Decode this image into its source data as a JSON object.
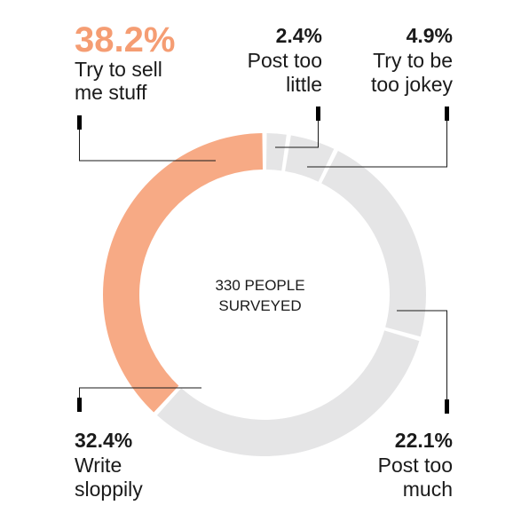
{
  "center_label": [
    "330 PEOPLE",
    "SURVEYED"
  ],
  "colors": {
    "highlight": "#f7aa85",
    "highlight_text": "#f59d73",
    "muted": "#e5e5e6",
    "text": "#1a1a1a"
  },
  "chart_data": {
    "type": "pie",
    "style": "donut",
    "title": "",
    "center_label": "330 PEOPLE SURVEYED",
    "slices": [
      {
        "label": "Post too little",
        "value": 2.4,
        "value_label": "2.4%",
        "label_lines": [
          "Post too",
          "little"
        ],
        "color": "#e5e5e6"
      },
      {
        "label": "Try to be too jokey",
        "value": 4.9,
        "value_label": "4.9%",
        "label_lines": [
          "Try to be",
          "too jokey"
        ],
        "color": "#e5e5e6"
      },
      {
        "label": "Post too much",
        "value": 22.1,
        "value_label": "22.1%",
        "label_lines": [
          "Post too",
          "much"
        ],
        "color": "#e5e5e6"
      },
      {
        "label": "Write sloppily",
        "value": 32.4,
        "value_label": "32.4%",
        "label_lines": [
          "Write",
          "sloppily"
        ],
        "color": "#e5e5e6"
      },
      {
        "label": "Try to sell me stuff",
        "value": 38.2,
        "value_label": "38.2%",
        "label_lines": [
          "Try to sell",
          "me stuff"
        ],
        "color": "#f7aa85",
        "highlight": true
      }
    ]
  }
}
